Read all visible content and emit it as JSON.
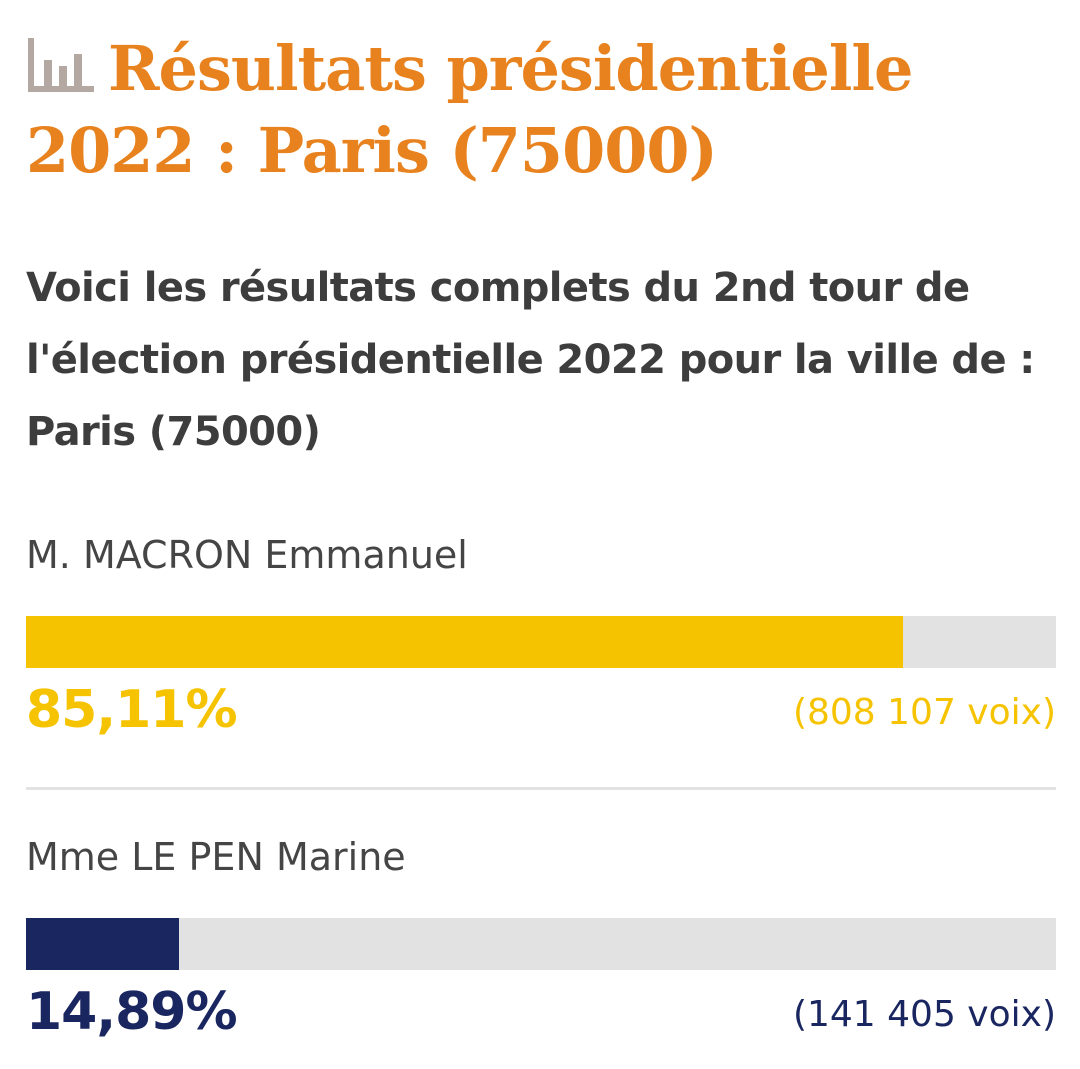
{
  "header": {
    "icon": "bar-chart-icon",
    "title": "Résultats présidentielle 2022 : Paris (75000)"
  },
  "intro": "Voici les résultats complets du 2nd tour de l'élection présidentielle 2022 pour la ville de : Paris (75000)",
  "colors": {
    "title": "#e8821e",
    "icon": "#b3a9a2",
    "bar_track": "#e2e2e2",
    "macron": "#f6c300",
    "le_pen": "#1a2660"
  },
  "candidates": [
    {
      "name": "M. MACRON Emmanuel",
      "percent_label": "85,11%",
      "votes_label": "(808 107 voix)",
      "share": 0.8511,
      "color": "#f6c300"
    },
    {
      "name": "Mme LE PEN Marine",
      "percent_label": "14,89%",
      "votes_label": "(141 405 voix)",
      "share": 0.1489,
      "color": "#1a2660"
    }
  ]
}
